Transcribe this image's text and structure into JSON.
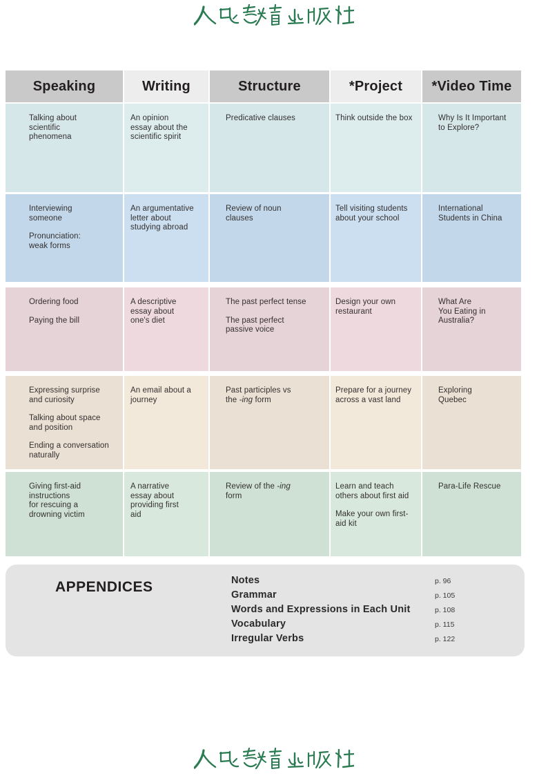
{
  "logo": {
    "text": "人民教育出版社",
    "color": "#2b7b52"
  },
  "table": {
    "headers": [
      "Speaking",
      "Writing",
      "Structure",
      "*Project",
      "*Video Time"
    ],
    "header_colors": {
      "dark": "#c9c9c9",
      "light": "#ededed"
    },
    "rows": [
      {
        "dark": "#d6e7e9",
        "light": "#ddedee",
        "cells": [
          [
            "Talking about\nscientific\nphenomena"
          ],
          [
            "An opinion\nessay about the\nscientific spirit"
          ],
          [
            "Predicative clauses"
          ],
          [
            "Think outside the box"
          ],
          [
            "Why Is It Important\nto Explore?"
          ]
        ]
      },
      {
        "dark": "#c2d8ea",
        "light": "#cbdff0",
        "cells": [
          [
            "Interviewing\nsomeone",
            "Pronunciation:\nweak forms"
          ],
          [
            "An argumentative\nletter about\nstudying abroad"
          ],
          [
            "Review of noun\nclauses"
          ],
          [
            "Tell visiting students\nabout your school"
          ],
          [
            "International\nStudents in China"
          ]
        ]
      },
      {
        "dark": "#e6d3d8",
        "light": "#eedade",
        "cells": [
          [
            "Ordering food",
            "Paying the bill"
          ],
          [
            "A descriptive\nessay about\none's diet"
          ],
          [
            "The past perfect tense",
            "The past perfect\npassive voice"
          ],
          [
            "Design your own\nrestaurant"
          ],
          [
            "What Are\nYou Eating in\nAustralia?"
          ]
        ]
      },
      {
        "dark": "#eae1d4",
        "light": "#f2e9da",
        "cells": [
          [
            "Expressing surprise\nand curiosity",
            "Talking about space\nand position",
            "Ending a conversation\nnaturally"
          ],
          [
            "An email about a\njourney"
          ],
          [
            "Past participles vs\nthe *-ing* form"
          ],
          [
            "Prepare for a journey\nacross a vast land"
          ],
          [
            "Exploring\nQuebec"
          ]
        ]
      },
      {
        "dark": "#cfe1d4",
        "light": "#d9e8dc",
        "cells": [
          [
            "Giving first-aid\ninstructions\nfor rescuing a\ndrowning victim"
          ],
          [
            "A narrative\nessay about\nproviding first\naid"
          ],
          [
            "Review of the *-ing*\nform"
          ],
          [
            "Learn and teach\nothers about first aid",
            "Make your own first-\naid kit"
          ],
          [
            "Para-Life Rescue"
          ]
        ]
      }
    ]
  },
  "appendices": {
    "title": "APPENDICES",
    "items": [
      {
        "label": "Notes",
        "page": "p. 96"
      },
      {
        "label": "Grammar",
        "page": "p. 105"
      },
      {
        "label": "Words and Expressions in Each Unit",
        "page": "p. 108"
      },
      {
        "label": "Vocabulary",
        "page": "p. 115"
      },
      {
        "label": "Irregular Verbs",
        "page": "p. 122"
      }
    ]
  }
}
